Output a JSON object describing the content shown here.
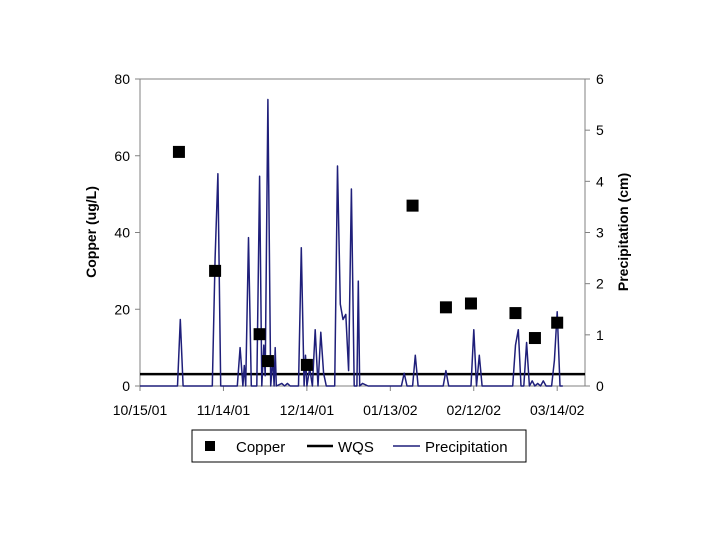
{
  "chart_data": {
    "type": "scatter+line",
    "title": "",
    "xlabel": "",
    "ylabel": "Copper (ug/L)",
    "y2label": "Precipitation (cm)",
    "ylim": [
      0,
      80
    ],
    "y2lim": [
      0,
      6
    ],
    "yticks": [
      0,
      20,
      40,
      60,
      80
    ],
    "y2ticks": [
      0,
      1,
      2,
      3,
      4,
      5,
      6
    ],
    "xlim_days": [
      0,
      160
    ],
    "xticks": [
      {
        "day": 0,
        "label": "10/15/01"
      },
      {
        "day": 30,
        "label": "11/14/01"
      },
      {
        "day": 60,
        "label": "12/14/01"
      },
      {
        "day": 90,
        "label": "01/13/02"
      },
      {
        "day": 120,
        "label": "02/12/02"
      },
      {
        "day": 150,
        "label": "03/14/02"
      }
    ],
    "copper": {
      "name": "Copper",
      "color": "#000000",
      "points": [
        {
          "day": 14,
          "value": 61
        },
        {
          "day": 27,
          "value": 30
        },
        {
          "day": 43,
          "value": 13.5
        },
        {
          "day": 46,
          "value": 6.5
        },
        {
          "day": 60,
          "value": 5.5
        },
        {
          "day": 98,
          "value": 47
        },
        {
          "day": 110,
          "value": 20.5
        },
        {
          "day": 119,
          "value": 21.5
        },
        {
          "day": 135,
          "value": 19
        },
        {
          "day": 142,
          "value": 12.5
        },
        {
          "day": 150,
          "value": 16.5
        }
      ]
    },
    "wqs": {
      "name": "WQS",
      "color": "#000000",
      "value": 3.1
    },
    "precipitation": {
      "name": "Precipitation",
      "color": "#1f1f7a",
      "points": [
        [
          0,
          0
        ],
        [
          13.5,
          0
        ],
        [
          14.5,
          1.3
        ],
        [
          15.5,
          0
        ],
        [
          26,
          0
        ],
        [
          27,
          2.5
        ],
        [
          28,
          4.15
        ],
        [
          29,
          0
        ],
        [
          35,
          0
        ],
        [
          36,
          0.75
        ],
        [
          37,
          0
        ],
        [
          37.5,
          0.4
        ],
        [
          38,
          0
        ],
        [
          39,
          2.9
        ],
        [
          40,
          0
        ],
        [
          42,
          0
        ],
        [
          43,
          4.1
        ],
        [
          43.8,
          0
        ],
        [
          44.5,
          0.8
        ],
        [
          45,
          0.2
        ],
        [
          46,
          5.6
        ],
        [
          47,
          0
        ],
        [
          47.8,
          0.55
        ],
        [
          48.2,
          0
        ],
        [
          48.6,
          0.75
        ],
        [
          49,
          0
        ],
        [
          51,
          0.05
        ],
        [
          52,
          0
        ],
        [
          53,
          0.05
        ],
        [
          54,
          0
        ],
        [
          57,
          0
        ],
        [
          58,
          2.7
        ],
        [
          59,
          0
        ],
        [
          59.5,
          0.6
        ],
        [
          60,
          0
        ],
        [
          61,
          0.35
        ],
        [
          62,
          0
        ],
        [
          63,
          1.1
        ],
        [
          64,
          0
        ],
        [
          65,
          1.05
        ],
        [
          66,
          0.25
        ],
        [
          67,
          0
        ],
        [
          70,
          0
        ],
        [
          71,
          4.3
        ],
        [
          72,
          1.6
        ],
        [
          73,
          1.3
        ],
        [
          74,
          1.4
        ],
        [
          75,
          0.3
        ],
        [
          76,
          3.85
        ],
        [
          77,
          0
        ],
        [
          78,
          0
        ],
        [
          78.5,
          2.05
        ],
        [
          79,
          0
        ],
        [
          80,
          0.05
        ],
        [
          82,
          0
        ],
        [
          94,
          0
        ],
        [
          95,
          0.25
        ],
        [
          96,
          0
        ],
        [
          98,
          0
        ],
        [
          99,
          0.6
        ],
        [
          100,
          0
        ],
        [
          109,
          0
        ],
        [
          110,
          0.3
        ],
        [
          111,
          0
        ],
        [
          119,
          0
        ],
        [
          120,
          1.1
        ],
        [
          121,
          0
        ],
        [
          122,
          0.6
        ],
        [
          123,
          0
        ],
        [
          134,
          0
        ],
        [
          135,
          0.8
        ],
        [
          136,
          1.1
        ],
        [
          137,
          0
        ],
        [
          138,
          0
        ],
        [
          139,
          0.85
        ],
        [
          140,
          0
        ],
        [
          141,
          0.1
        ],
        [
          142,
          0
        ],
        [
          143,
          0.05
        ],
        [
          144,
          0
        ],
        [
          145,
          0.1
        ],
        [
          146,
          0
        ],
        [
          148,
          0
        ],
        [
          149,
          0.5
        ],
        [
          150,
          1.45
        ],
        [
          151,
          0
        ],
        [
          152,
          0
        ]
      ]
    },
    "legend": {
      "position": "bottom",
      "entries": [
        "Copper",
        "WQS",
        "Precipitation"
      ]
    }
  }
}
